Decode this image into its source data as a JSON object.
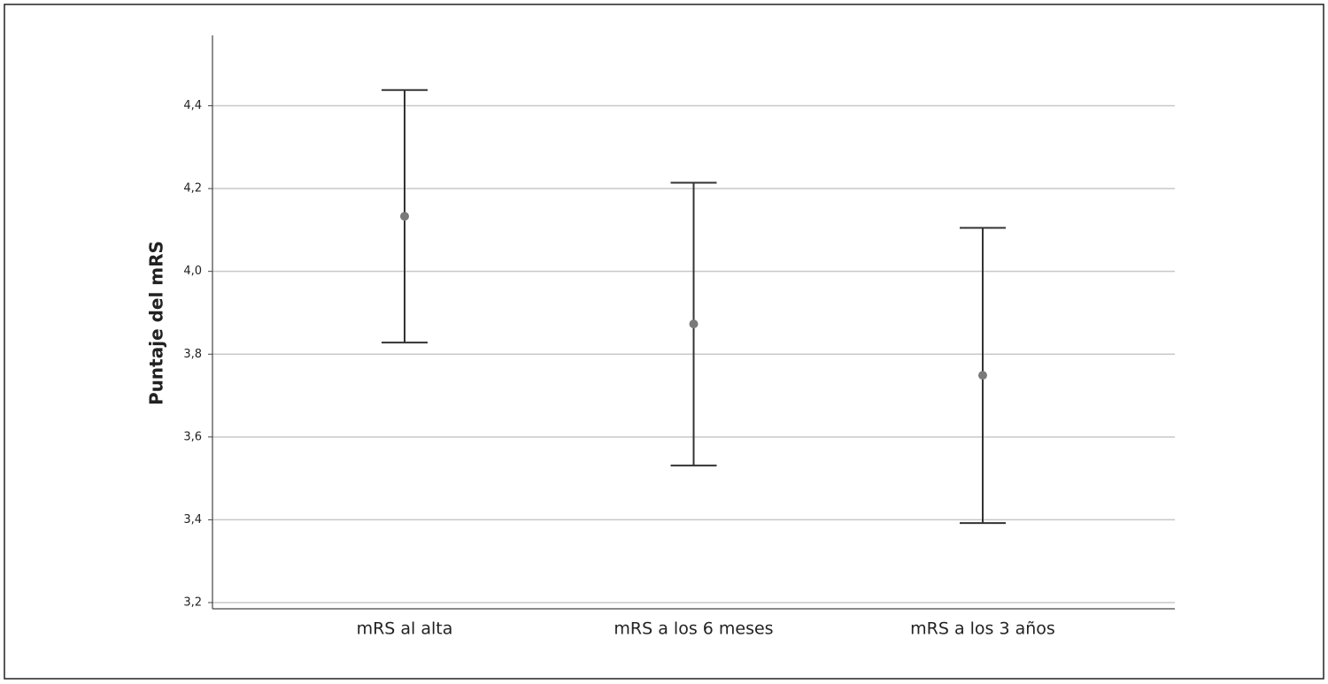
{
  "chart_data": {
    "type": "errorbar",
    "y_label": "Puntaje del mRS",
    "categories": [
      "mRS al alta",
      "mRS a los 6 meses",
      "mRS a los 3 años"
    ],
    "values": [
      4.133,
      3.873,
      3.749
    ],
    "ci_low": [
      3.828,
      3.531,
      3.392
    ],
    "ci_high": [
      4.438,
      4.214,
      4.105
    ],
    "color": "#7a7a7a",
    "ylim": [
      3.185,
      4.57
    ],
    "yticks": [
      {
        "value": 3.2,
        "label": "3,2"
      },
      {
        "value": 3.4,
        "label": "3,4"
      },
      {
        "value": 3.6,
        "label": "3,6"
      },
      {
        "value": 3.8,
        "label": "3,8"
      },
      {
        "value": 4.0,
        "label": "4,0"
      },
      {
        "value": 4.2,
        "label": "4,2"
      },
      {
        "value": 4.4,
        "label": "4,4"
      }
    ],
    "grid": true
  }
}
